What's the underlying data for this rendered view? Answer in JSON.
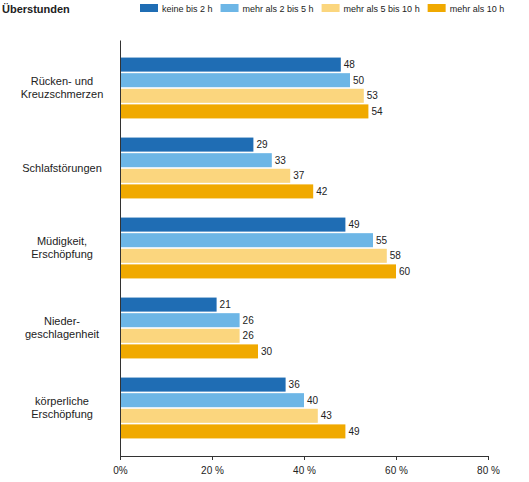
{
  "chart_data": {
    "type": "bar",
    "orientation": "horizontal",
    "title": "Überstunden",
    "categories": [
      "Rücken- und\nKreuzschmerzen",
      "Schlafstörungen",
      "Müdigkeit,\nErschöpfung",
      "Nieder-\ngeschlagenheit",
      "körperliche\nErschöpfung"
    ],
    "series": [
      {
        "name": "keine bis 2 h",
        "color": "#1f6db4",
        "values": [
          48,
          29,
          49,
          21,
          36
        ]
      },
      {
        "name": "mehr als 2 bis 5 h",
        "color": "#6db6e6",
        "values": [
          50,
          33,
          55,
          26,
          40
        ]
      },
      {
        "name": "mehr als 5 bis 10 h",
        "color": "#fbd67e",
        "values": [
          53,
          37,
          58,
          26,
          43
        ]
      },
      {
        "name": "mehr als 10 h",
        "color": "#f0a900",
        "values": [
          54,
          42,
          60,
          30,
          49
        ]
      }
    ],
    "xlim": [
      0,
      80
    ],
    "xticks": [
      {
        "value": 0,
        "label": "0%"
      },
      {
        "value": 20,
        "label": "20 %"
      },
      {
        "value": 40,
        "label": "40 %"
      },
      {
        "value": 60,
        "label": "60 %"
      },
      {
        "value": 80,
        "label": "80 %"
      }
    ],
    "grid": false,
    "legend": "top",
    "data_labels": true
  }
}
